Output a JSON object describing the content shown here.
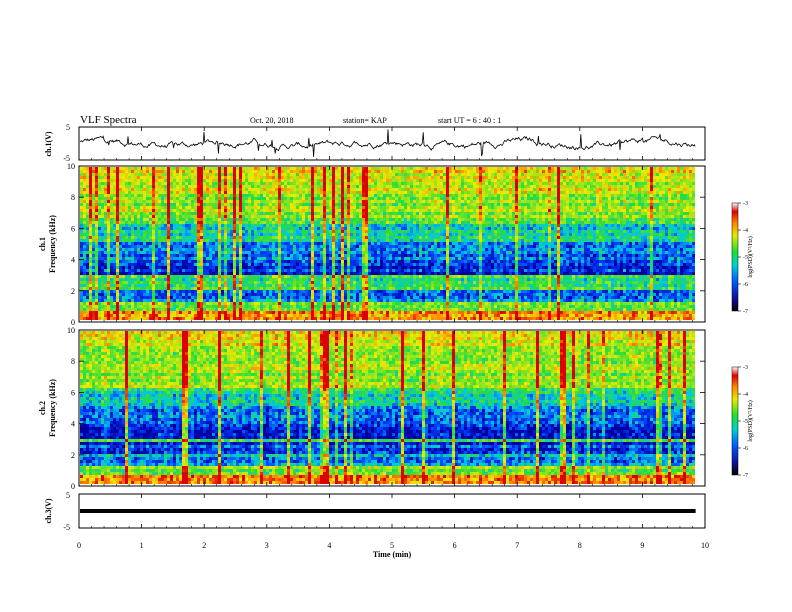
{
  "header": {
    "title": "VLF Spectra",
    "date": "Oct. 20, 2018",
    "station": "station= KAP",
    "start": "start  UT =   6  : 40 : 1"
  },
  "chart_data": [
    {
      "type": "line",
      "name": "ch1-waveform",
      "ylabel": "ch.1(V)",
      "ylim": [
        -5,
        5
      ],
      "y_ticks": [
        "5",
        "-5"
      ],
      "xlim": [
        0,
        10
      ],
      "description_color": "#000000"
    },
    {
      "type": "heatmap",
      "name": "ch1-spectrogram",
      "ylabel": "ch.1\nFrequency (kHz)",
      "ylabel_lines": [
        "ch.1",
        "Frequency  (kHz)"
      ],
      "ylim": [
        0,
        10
      ],
      "y_ticks": [
        "0",
        "2",
        "4",
        "6",
        "8",
        "10"
      ],
      "xlim": [
        0,
        10
      ],
      "colorbar": {
        "label": "log(PSD)(V²/Hz)",
        "range": [
          -7,
          -3
        ],
        "ticks": [
          "-3",
          "-4",
          "-5",
          "-6",
          "-7"
        ]
      }
    },
    {
      "type": "heatmap",
      "name": "ch2-spectrogram",
      "ylabel_lines": [
        "ch.2",
        "Frequency  (kHz)"
      ],
      "ylim": [
        0,
        10
      ],
      "y_ticks": [
        "0",
        "2",
        "4",
        "6",
        "8",
        "10"
      ],
      "xlim": [
        0,
        10
      ],
      "colorbar": {
        "label": "log(PSD)(V²/Hz)",
        "range": [
          -7,
          -3
        ],
        "ticks": [
          "-3",
          "-4",
          "-5",
          "-6",
          "-7"
        ]
      }
    },
    {
      "type": "line",
      "name": "ch3-waveform",
      "ylabel": "ch.3(V)",
      "ylim": [
        -5,
        5
      ],
      "y_ticks": [
        "5",
        "-5"
      ],
      "xlim": [
        0,
        10
      ],
      "constant_value": 0
    }
  ],
  "xaxis": {
    "label": "Time  (min)",
    "ticks": [
      "0",
      "1",
      "2",
      "3",
      "4",
      "5",
      "6",
      "7",
      "8",
      "9",
      "10"
    ],
    "data_end": 9.85
  }
}
